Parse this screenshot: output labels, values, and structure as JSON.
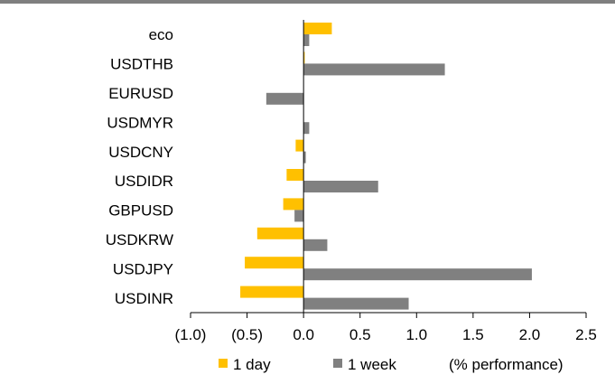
{
  "chart_data": {
    "type": "bar",
    "orientation": "horizontal",
    "categories": [
      "eco",
      "USDTHB",
      "EURUSD",
      "USDMYR",
      "USDCNY",
      "USDIDR",
      "GBPUSD",
      "USDKRW",
      "USDJPY",
      "USDINR"
    ],
    "series": [
      {
        "name": "1 day",
        "color": "#FFC000",
        "values": [
          0.25,
          0.01,
          0.0,
          0.0,
          -0.07,
          -0.15,
          -0.18,
          -0.41,
          -0.52,
          -0.56
        ]
      },
      {
        "name": "1 week",
        "color": "#808080",
        "values": [
          0.05,
          1.25,
          -0.33,
          0.05,
          0.02,
          0.66,
          -0.08,
          0.21,
          2.02,
          0.93
        ]
      }
    ],
    "xlim": [
      -1.0,
      2.5
    ],
    "xticks": [
      -1.0,
      -0.5,
      0.0,
      0.5,
      1.0,
      1.5,
      2.0,
      2.5
    ],
    "xtick_labels": [
      "(1.0)",
      "(0.5)",
      "0.0",
      "0.5",
      "1.0",
      "1.5",
      "2.0",
      "2.5"
    ],
    "unit_note": "(% performance)",
    "legend_position": "bottom",
    "grid": false
  }
}
